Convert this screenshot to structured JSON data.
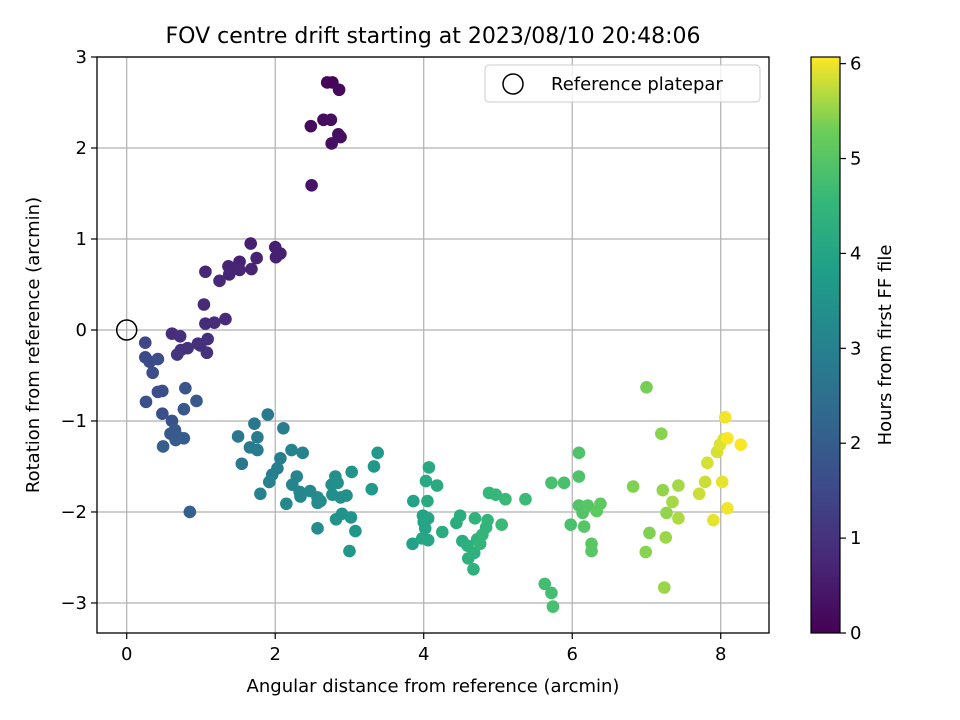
{
  "chart_data": {
    "type": "scatter",
    "title": "FOV centre drift starting at 2023/08/10 20:48:06",
    "xlabel": "Angular distance from reference (arcmin)",
    "ylabel": "Rotation from reference (arcmin)",
    "xlim": [
      -0.4,
      8.65
    ],
    "ylim": [
      -3.33,
      3.0
    ],
    "xticks": [
      0,
      2,
      4,
      6,
      8
    ],
    "yticks": [
      -3,
      -2,
      -1,
      0,
      1,
      2,
      3
    ],
    "xtick_labels": [
      "0",
      "2",
      "4",
      "6",
      "8"
    ],
    "ytick_labels": [
      "−3",
      "−2",
      "−1",
      "0",
      "1",
      "2",
      "3"
    ],
    "grid": true,
    "legend": {
      "position": "upper-right",
      "label": "Reference platepar"
    },
    "reference_point": {
      "x": 0,
      "y": 0
    },
    "colormap": "viridis",
    "colorbar": {
      "label": "Hours from first FF file",
      "range": [
        0,
        6.07
      ],
      "ticks": [
        0,
        1,
        2,
        3,
        4,
        5,
        6
      ]
    },
    "points": [
      {
        "x": 2.7,
        "y": 2.72,
        "h": 0.1
      },
      {
        "x": 2.77,
        "y": 2.72,
        "h": 0.1
      },
      {
        "x": 2.86,
        "y": 2.64,
        "h": 0.15
      },
      {
        "x": 2.48,
        "y": 2.24,
        "h": 0.2
      },
      {
        "x": 2.65,
        "y": 2.31,
        "h": 0.2
      },
      {
        "x": 2.75,
        "y": 2.31,
        "h": 0.25
      },
      {
        "x": 2.85,
        "y": 2.15,
        "h": 0.25
      },
      {
        "x": 2.88,
        "y": 2.12,
        "h": 0.25
      },
      {
        "x": 2.76,
        "y": 2.05,
        "h": 0.3
      },
      {
        "x": 2.49,
        "y": 1.59,
        "h": 0.35
      },
      {
        "x": 1.67,
        "y": 0.95,
        "h": 0.6
      },
      {
        "x": 2.0,
        "y": 0.91,
        "h": 0.6
      },
      {
        "x": 2.07,
        "y": 0.84,
        "h": 0.62
      },
      {
        "x": 2.01,
        "y": 0.8,
        "h": 0.62
      },
      {
        "x": 1.75,
        "y": 0.79,
        "h": 0.65
      },
      {
        "x": 1.52,
        "y": 0.75,
        "h": 0.65
      },
      {
        "x": 1.37,
        "y": 0.7,
        "h": 0.68
      },
      {
        "x": 1.44,
        "y": 0.68,
        "h": 0.68
      },
      {
        "x": 1.52,
        "y": 0.66,
        "h": 0.7
      },
      {
        "x": 1.68,
        "y": 0.67,
        "h": 0.7
      },
      {
        "x": 1.38,
        "y": 0.61,
        "h": 0.72
      },
      {
        "x": 1.06,
        "y": 0.64,
        "h": 0.72
      },
      {
        "x": 1.25,
        "y": 0.54,
        "h": 0.75
      },
      {
        "x": 1.04,
        "y": 0.28,
        "h": 0.8
      },
      {
        "x": 1.33,
        "y": 0.12,
        "h": 0.85
      },
      {
        "x": 1.18,
        "y": 0.08,
        "h": 0.85
      },
      {
        "x": 1.06,
        "y": 0.07,
        "h": 0.88
      },
      {
        "x": 0.61,
        "y": -0.04,
        "h": 0.9
      },
      {
        "x": 0.72,
        "y": -0.07,
        "h": 0.92
      },
      {
        "x": 0.96,
        "y": -0.15,
        "h": 0.92
      },
      {
        "x": 0.99,
        "y": -0.17,
        "h": 0.95
      },
      {
        "x": 1.09,
        "y": -0.1,
        "h": 0.95
      },
      {
        "x": 1.08,
        "y": -0.25,
        "h": 0.98
      },
      {
        "x": 0.82,
        "y": -0.2,
        "h": 1.0
      },
      {
        "x": 0.73,
        "y": -0.22,
        "h": 1.0
      },
      {
        "x": 0.68,
        "y": -0.27,
        "h": 1.05
      },
      {
        "x": 0.25,
        "y": -0.14,
        "h": 1.5
      },
      {
        "x": 0.25,
        "y": -0.3,
        "h": 1.55
      },
      {
        "x": 0.31,
        "y": -0.35,
        "h": 1.55
      },
      {
        "x": 0.42,
        "y": -0.32,
        "h": 1.6
      },
      {
        "x": 0.35,
        "y": -0.47,
        "h": 1.6
      },
      {
        "x": 0.42,
        "y": -0.68,
        "h": 1.65
      },
      {
        "x": 0.48,
        "y": -0.67,
        "h": 1.65
      },
      {
        "x": 0.26,
        "y": -0.79,
        "h": 1.7
      },
      {
        "x": 0.48,
        "y": -0.92,
        "h": 1.7
      },
      {
        "x": 0.61,
        "y": -1.0,
        "h": 1.75
      },
      {
        "x": 0.79,
        "y": -0.64,
        "h": 1.8
      },
      {
        "x": 0.94,
        "y": -0.78,
        "h": 1.85
      },
      {
        "x": 0.77,
        "y": -0.87,
        "h": 1.85
      },
      {
        "x": 0.65,
        "y": -1.1,
        "h": 1.9
      },
      {
        "x": 0.59,
        "y": -1.14,
        "h": 1.9
      },
      {
        "x": 0.66,
        "y": -1.21,
        "h": 1.95
      },
      {
        "x": 0.7,
        "y": -1.18,
        "h": 1.95
      },
      {
        "x": 0.77,
        "y": -1.19,
        "h": 2.0
      },
      {
        "x": 0.49,
        "y": -1.28,
        "h": 2.0
      },
      {
        "x": 0.85,
        "y": -2.0,
        "h": 2.1
      },
      {
        "x": 1.5,
        "y": -1.17,
        "h": 2.7
      },
      {
        "x": 1.55,
        "y": -1.47,
        "h": 2.75
      },
      {
        "x": 1.72,
        "y": -1.03,
        "h": 2.75
      },
      {
        "x": 1.9,
        "y": -0.93,
        "h": 2.8
      },
      {
        "x": 1.66,
        "y": -1.29,
        "h": 2.8
      },
      {
        "x": 1.76,
        "y": -1.18,
        "h": 2.85
      },
      {
        "x": 1.76,
        "y": -1.32,
        "h": 2.85
      },
      {
        "x": 2.11,
        "y": -1.08,
        "h": 2.9
      },
      {
        "x": 2.07,
        "y": -1.41,
        "h": 2.9
      },
      {
        "x": 2.03,
        "y": -1.52,
        "h": 2.95
      },
      {
        "x": 1.96,
        "y": -1.59,
        "h": 2.95
      },
      {
        "x": 1.92,
        "y": -1.67,
        "h": 3.0
      },
      {
        "x": 1.8,
        "y": -1.8,
        "h": 3.0
      },
      {
        "x": 2.22,
        "y": -1.32,
        "h": 3.05
      },
      {
        "x": 2.37,
        "y": -1.35,
        "h": 3.05
      },
      {
        "x": 2.29,
        "y": -1.61,
        "h": 3.1
      },
      {
        "x": 2.23,
        "y": -1.7,
        "h": 3.1
      },
      {
        "x": 2.33,
        "y": -1.78,
        "h": 3.15
      },
      {
        "x": 2.34,
        "y": -1.83,
        "h": 3.15
      },
      {
        "x": 2.47,
        "y": -1.77,
        "h": 3.2
      },
      {
        "x": 2.15,
        "y": -1.91,
        "h": 3.2
      },
      {
        "x": 2.57,
        "y": -1.84,
        "h": 3.25
      },
      {
        "x": 2.57,
        "y": -1.9,
        "h": 3.25
      },
      {
        "x": 2.61,
        "y": -1.88,
        "h": 3.3
      },
      {
        "x": 2.57,
        "y": -2.18,
        "h": 3.3
      },
      {
        "x": 2.76,
        "y": -1.7,
        "h": 3.35
      },
      {
        "x": 2.81,
        "y": -1.61,
        "h": 3.35
      },
      {
        "x": 2.77,
        "y": -1.81,
        "h": 3.4
      },
      {
        "x": 2.88,
        "y": -1.84,
        "h": 3.4
      },
      {
        "x": 2.96,
        "y": -1.82,
        "h": 3.45
      },
      {
        "x": 2.84,
        "y": -1.68,
        "h": 3.45
      },
      {
        "x": 2.9,
        "y": -2.02,
        "h": 3.5
      },
      {
        "x": 2.82,
        "y": -2.08,
        "h": 3.5
      },
      {
        "x": 3.03,
        "y": -1.56,
        "h": 3.55
      },
      {
        "x": 3.02,
        "y": -2.06,
        "h": 3.55
      },
      {
        "x": 3.08,
        "y": -2.21,
        "h": 3.6
      },
      {
        "x": 3.0,
        "y": -2.43,
        "h": 3.6
      },
      {
        "x": 3.33,
        "y": -1.5,
        "h": 3.65
      },
      {
        "x": 3.38,
        "y": -1.35,
        "h": 3.65
      },
      {
        "x": 3.3,
        "y": -1.75,
        "h": 3.7
      },
      {
        "x": 3.85,
        "y": -2.35,
        "h": 3.9
      },
      {
        "x": 3.86,
        "y": -1.88,
        "h": 3.9
      },
      {
        "x": 3.99,
        "y": -2.04,
        "h": 3.95
      },
      {
        "x": 4.0,
        "y": -2.11,
        "h": 3.95
      },
      {
        "x": 4.02,
        "y": -2.18,
        "h": 4.0
      },
      {
        "x": 4.06,
        "y": -2.07,
        "h": 4.0
      },
      {
        "x": 3.98,
        "y": -2.29,
        "h": 4.05
      },
      {
        "x": 4.06,
        "y": -2.31,
        "h": 4.05
      },
      {
        "x": 4.03,
        "y": -1.66,
        "h": 4.1
      },
      {
        "x": 4.07,
        "y": -1.51,
        "h": 4.1
      },
      {
        "x": 4.05,
        "y": -1.88,
        "h": 4.15
      },
      {
        "x": 4.18,
        "y": -1.71,
        "h": 4.15
      },
      {
        "x": 4.25,
        "y": -2.22,
        "h": 4.2
      },
      {
        "x": 4.44,
        "y": -2.12,
        "h": 4.2
      },
      {
        "x": 4.49,
        "y": -2.04,
        "h": 4.25
      },
      {
        "x": 4.52,
        "y": -2.32,
        "h": 4.25
      },
      {
        "x": 4.59,
        "y": -2.37,
        "h": 4.3
      },
      {
        "x": 4.6,
        "y": -2.51,
        "h": 4.3
      },
      {
        "x": 4.68,
        "y": -2.45,
        "h": 4.35
      },
      {
        "x": 4.67,
        "y": -2.63,
        "h": 4.35
      },
      {
        "x": 4.69,
        "y": -2.07,
        "h": 4.4
      },
      {
        "x": 4.72,
        "y": -2.3,
        "h": 4.4
      },
      {
        "x": 4.76,
        "y": -2.35,
        "h": 4.45
      },
      {
        "x": 4.79,
        "y": -2.25,
        "h": 4.45
      },
      {
        "x": 4.84,
        "y": -2.17,
        "h": 4.5
      },
      {
        "x": 4.86,
        "y": -2.09,
        "h": 4.5
      },
      {
        "x": 4.88,
        "y": -1.79,
        "h": 4.55
      },
      {
        "x": 4.97,
        "y": -1.81,
        "h": 4.55
      },
      {
        "x": 5.05,
        "y": -2.14,
        "h": 4.6
      },
      {
        "x": 5.1,
        "y": -1.86,
        "h": 4.6
      },
      {
        "x": 5.37,
        "y": -1.86,
        "h": 4.65
      },
      {
        "x": 5.63,
        "y": -2.79,
        "h": 4.75
      },
      {
        "x": 5.72,
        "y": -2.89,
        "h": 4.75
      },
      {
        "x": 5.74,
        "y": -3.04,
        "h": 4.8
      },
      {
        "x": 5.72,
        "y": -1.68,
        "h": 4.8
      },
      {
        "x": 5.89,
        "y": -1.68,
        "h": 4.85
      },
      {
        "x": 5.98,
        "y": -2.14,
        "h": 4.85
      },
      {
        "x": 6.09,
        "y": -1.35,
        "h": 4.9
      },
      {
        "x": 6.09,
        "y": -1.61,
        "h": 4.9
      },
      {
        "x": 6.09,
        "y": -1.93,
        "h": 4.95
      },
      {
        "x": 6.14,
        "y": -2.01,
        "h": 4.95
      },
      {
        "x": 6.21,
        "y": -1.93,
        "h": 5.0
      },
      {
        "x": 6.16,
        "y": -2.16,
        "h": 5.0
      },
      {
        "x": 6.26,
        "y": -2.35,
        "h": 5.05
      },
      {
        "x": 6.26,
        "y": -2.43,
        "h": 5.05
      },
      {
        "x": 6.33,
        "y": -1.99,
        "h": 5.1
      },
      {
        "x": 6.38,
        "y": -1.91,
        "h": 5.1
      },
      {
        "x": 7.0,
        "y": -0.63,
        "h": 5.35
      },
      {
        "x": 6.82,
        "y": -1.72,
        "h": 5.4
      },
      {
        "x": 7.04,
        "y": -2.23,
        "h": 5.4
      },
      {
        "x": 6.99,
        "y": -2.44,
        "h": 5.45
      },
      {
        "x": 7.2,
        "y": -1.14,
        "h": 5.45
      },
      {
        "x": 7.22,
        "y": -1.76,
        "h": 5.5
      },
      {
        "x": 7.27,
        "y": -2.01,
        "h": 5.5
      },
      {
        "x": 7.26,
        "y": -2.28,
        "h": 5.55
      },
      {
        "x": 7.24,
        "y": -2.83,
        "h": 5.55
      },
      {
        "x": 7.35,
        "y": -1.89,
        "h": 5.6
      },
      {
        "x": 7.43,
        "y": -1.71,
        "h": 5.6
      },
      {
        "x": 7.43,
        "y": -2.07,
        "h": 5.65
      },
      {
        "x": 7.71,
        "y": -1.8,
        "h": 5.8
      },
      {
        "x": 7.79,
        "y": -1.67,
        "h": 5.8
      },
      {
        "x": 7.82,
        "y": -1.46,
        "h": 5.85
      },
      {
        "x": 7.95,
        "y": -1.34,
        "h": 5.85
      },
      {
        "x": 7.99,
        "y": -1.26,
        "h": 5.9
      },
      {
        "x": 8.04,
        "y": -1.2,
        "h": 5.9
      },
      {
        "x": 7.9,
        "y": -2.09,
        "h": 5.95
      },
      {
        "x": 8.02,
        "y": -1.67,
        "h": 5.95
      },
      {
        "x": 8.06,
        "y": -0.96,
        "h": 6.0
      },
      {
        "x": 8.09,
        "y": -1.96,
        "h": 6.0
      },
      {
        "x": 8.09,
        "y": -1.19,
        "h": 6.05
      },
      {
        "x": 8.27,
        "y": -1.26,
        "h": 6.05
      }
    ]
  }
}
